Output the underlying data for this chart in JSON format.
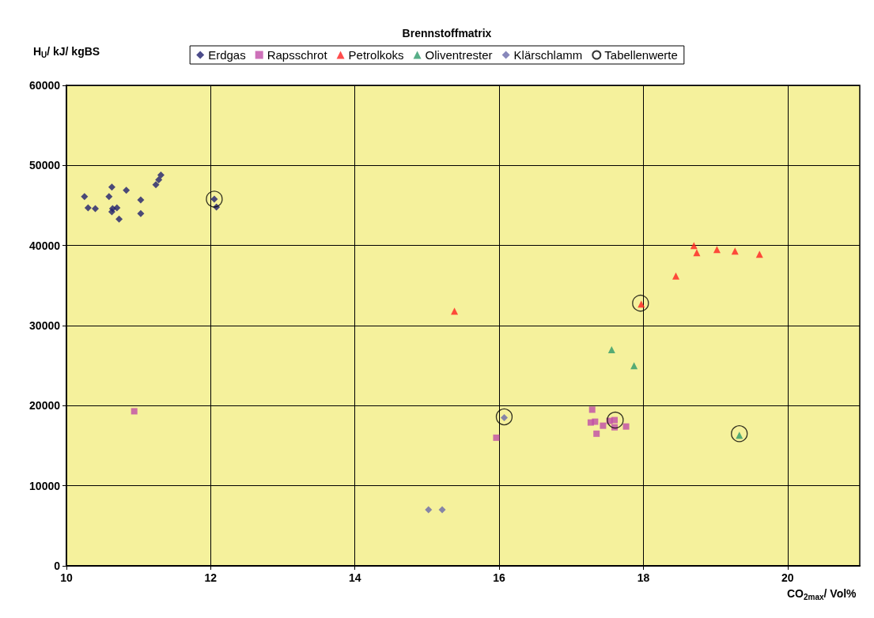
{
  "chart_data": {
    "type": "scatter",
    "title": "Brennstoffmatrix",
    "xlabel": "CO$_{2max}$/ Vol%",
    "ylabel": "H$_{U}$/ kJ/ kgBS",
    "xlim": [
      10,
      21
    ],
    "xticks": [
      10,
      12,
      14,
      16,
      18,
      20
    ],
    "ylim": [
      0,
      60000
    ],
    "yticks": [
      0,
      10000,
      20000,
      30000,
      40000,
      50000,
      60000
    ],
    "grid": true,
    "legend": "top",
    "series": [
      {
        "name": "Erdgas",
        "color": "#1f1f6e",
        "marker": "diamond",
        "x": [
          10.25,
          10.3,
          10.4,
          10.59,
          10.63,
          10.83,
          10.7,
          10.64,
          10.63,
          10.73,
          11.03,
          11.03,
          11.24,
          11.28,
          11.31,
          12.05,
          12.08
        ],
        "values": [
          46100,
          44700,
          44600,
          46100,
          47300,
          46900,
          44700,
          44600,
          44200,
          43300,
          45700,
          44000,
          47600,
          48200,
          48800,
          45800,
          44800
        ]
      },
      {
        "name": "Rapsschrot",
        "color": "#c04ca8",
        "marker": "square",
        "x": [
          10.94,
          15.96,
          17.27,
          17.29,
          17.33,
          17.35,
          17.44,
          17.53,
          17.6,
          17.6,
          17.76
        ],
        "values": [
          19300,
          16000,
          17900,
          19500,
          18000,
          16500,
          17500,
          18100,
          18200,
          17300,
          17400
        ]
      },
      {
        "name": "Petrolkoks",
        "color": "#ff2020",
        "marker": "triangle",
        "x": [
          15.38,
          17.97,
          18.45,
          18.7,
          18.74,
          19.02,
          19.27,
          19.61
        ],
        "values": [
          31800,
          32700,
          36200,
          40000,
          39100,
          39500,
          39300,
          38900
        ]
      },
      {
        "name": "Oliventrester",
        "color": "#2e9a6a",
        "marker": "triangle",
        "x": [
          17.56,
          17.87,
          19.33
        ],
        "values": [
          27000,
          25000,
          16300
        ]
      },
      {
        "name": "Klärschlamm",
        "color": "#6a6aaa",
        "marker": "diamond",
        "x": [
          15.02,
          15.21,
          16.07
        ],
        "values": [
          7000,
          7000,
          18500
        ]
      },
      {
        "name": "Tabellenwerte",
        "color": "#000000",
        "marker": "circle",
        "x": [
          12.05,
          16.07,
          17.61,
          17.96,
          19.33
        ],
        "values": [
          45800,
          18600,
          18200,
          32800,
          16500
        ]
      }
    ]
  }
}
